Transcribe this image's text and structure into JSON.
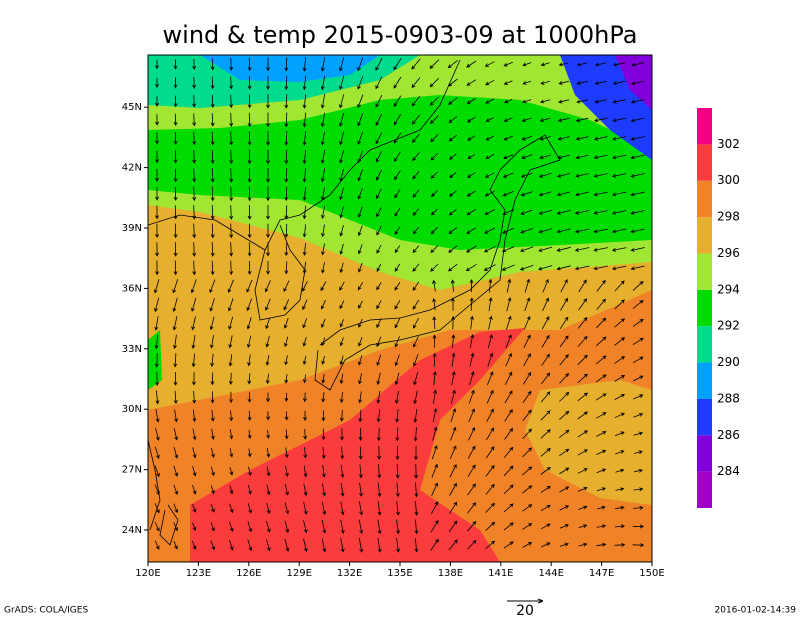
{
  "title": "wind & temp 2015-0903-09 at 1000hPa",
  "map": {
    "lon_labels": [
      "120E",
      "123E",
      "126E",
      "129E",
      "132E",
      "135E",
      "138E",
      "141E",
      "144E",
      "147E",
      "150E"
    ],
    "lat_labels": [
      "24N",
      "27N",
      "30N",
      "33N",
      "36N",
      "39N",
      "42N",
      "45N"
    ]
  },
  "colorbar": {
    "levels": [
      284,
      286,
      288,
      290,
      292,
      294,
      296,
      298,
      300,
      302
    ],
    "colors": [
      "#a000c8",
      "#8200dc",
      "#1e3cff",
      "#00a0ff",
      "#00dc8c",
      "#00dc00",
      "#a0e632",
      "#e6af2d",
      "#f08228",
      "#fa3c3c",
      "#f00082"
    ]
  },
  "vector_scale": {
    "label": "20"
  },
  "footer": {
    "left": "GrADS: COLA/IGES",
    "right": "2016-01-02-14:39"
  }
}
